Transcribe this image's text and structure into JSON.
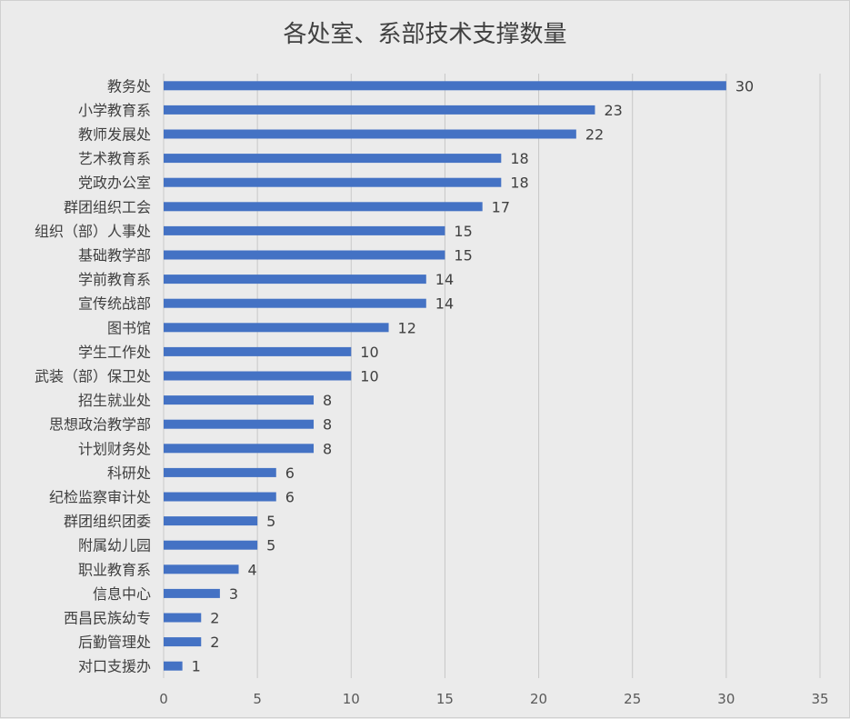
{
  "chart_data": {
    "type": "bar",
    "orientation": "horizontal",
    "title": "各处室、系部技术支撑数量",
    "categories": [
      "教务处",
      "小学教育系",
      "教师发展处",
      "艺术教育系",
      "党政办公室",
      "群团组织工会",
      "组织（部）人事处",
      "基础教学部",
      "学前教育系",
      "宣传统战部",
      "图书馆",
      "学生工作处",
      "武装（部）保卫处",
      "招生就业处",
      "思想政治教学部",
      "计划财务处",
      "科研处",
      "纪检监察审计处",
      "群团组织团委",
      "附属幼儿园",
      "职业教育系",
      "信息中心",
      "西昌民族幼专",
      "后勤管理处",
      "对口支援办"
    ],
    "values": [
      30,
      23,
      22,
      18,
      18,
      17,
      15,
      15,
      14,
      14,
      12,
      10,
      10,
      8,
      8,
      8,
      6,
      6,
      5,
      5,
      4,
      3,
      2,
      2,
      1
    ],
    "xlim": [
      0,
      35
    ],
    "xticks": [
      0,
      5,
      10,
      15,
      20,
      25,
      30,
      35
    ],
    "grid": true,
    "data_labels": true,
    "bar_color": "#4472c4"
  }
}
